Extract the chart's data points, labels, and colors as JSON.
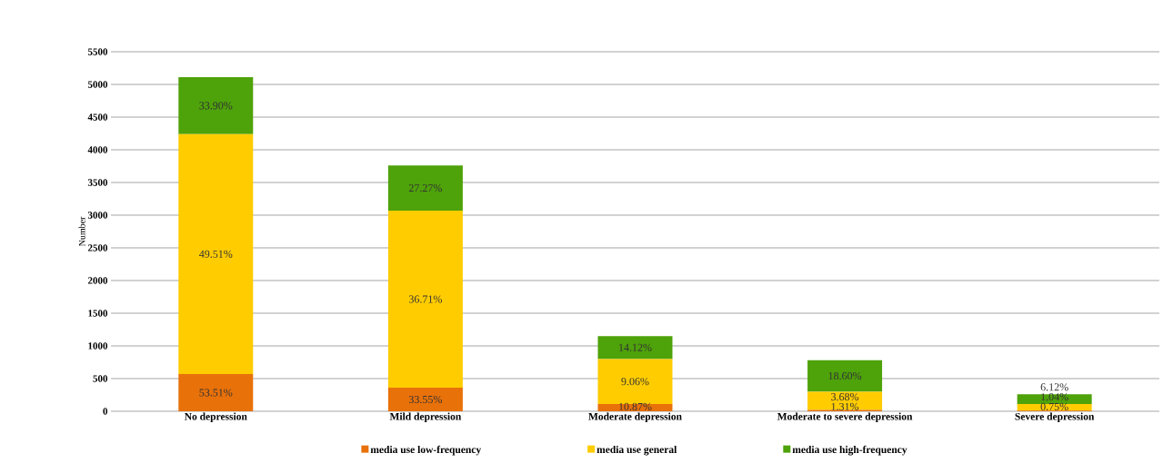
{
  "chart_data": {
    "type": "bar",
    "stacked": true,
    "ylabel": "Number",
    "categories": [
      "No depression",
      "Mild depression",
      "Moderate depression",
      "Moderate to severe depression",
      "Severe depression"
    ],
    "series": [
      {
        "name": "media use low-frequency",
        "color": "#e8710a",
        "values": [
          570,
          360,
          110,
          20,
          10
        ]
      },
      {
        "name": "media use general",
        "color": "#ffcc00",
        "values": [
          3670,
          2710,
          690,
          280,
          100
        ]
      },
      {
        "name": "media use high-frequency",
        "color": "#4ea20a",
        "values": [
          870,
          690,
          350,
          480,
          150
        ]
      }
    ],
    "annotations": [
      "53.51%",
      "49.51%",
      "33.90%",
      "33.55%",
      "36.71%",
      "27.27%",
      "10.87%",
      "9.06%",
      "14.12%",
      "1.31%",
      "3.68%",
      "18.60%",
      "0.75%",
      "1.04%",
      "6.12%"
    ],
    "ylim": [
      0,
      5500
    ],
    "yticks": [
      0,
      500,
      1000,
      1500,
      2000,
      2500,
      3000,
      3500,
      4000,
      4500,
      5000,
      5500
    ],
    "grid": "y",
    "legend": "bottom"
  }
}
